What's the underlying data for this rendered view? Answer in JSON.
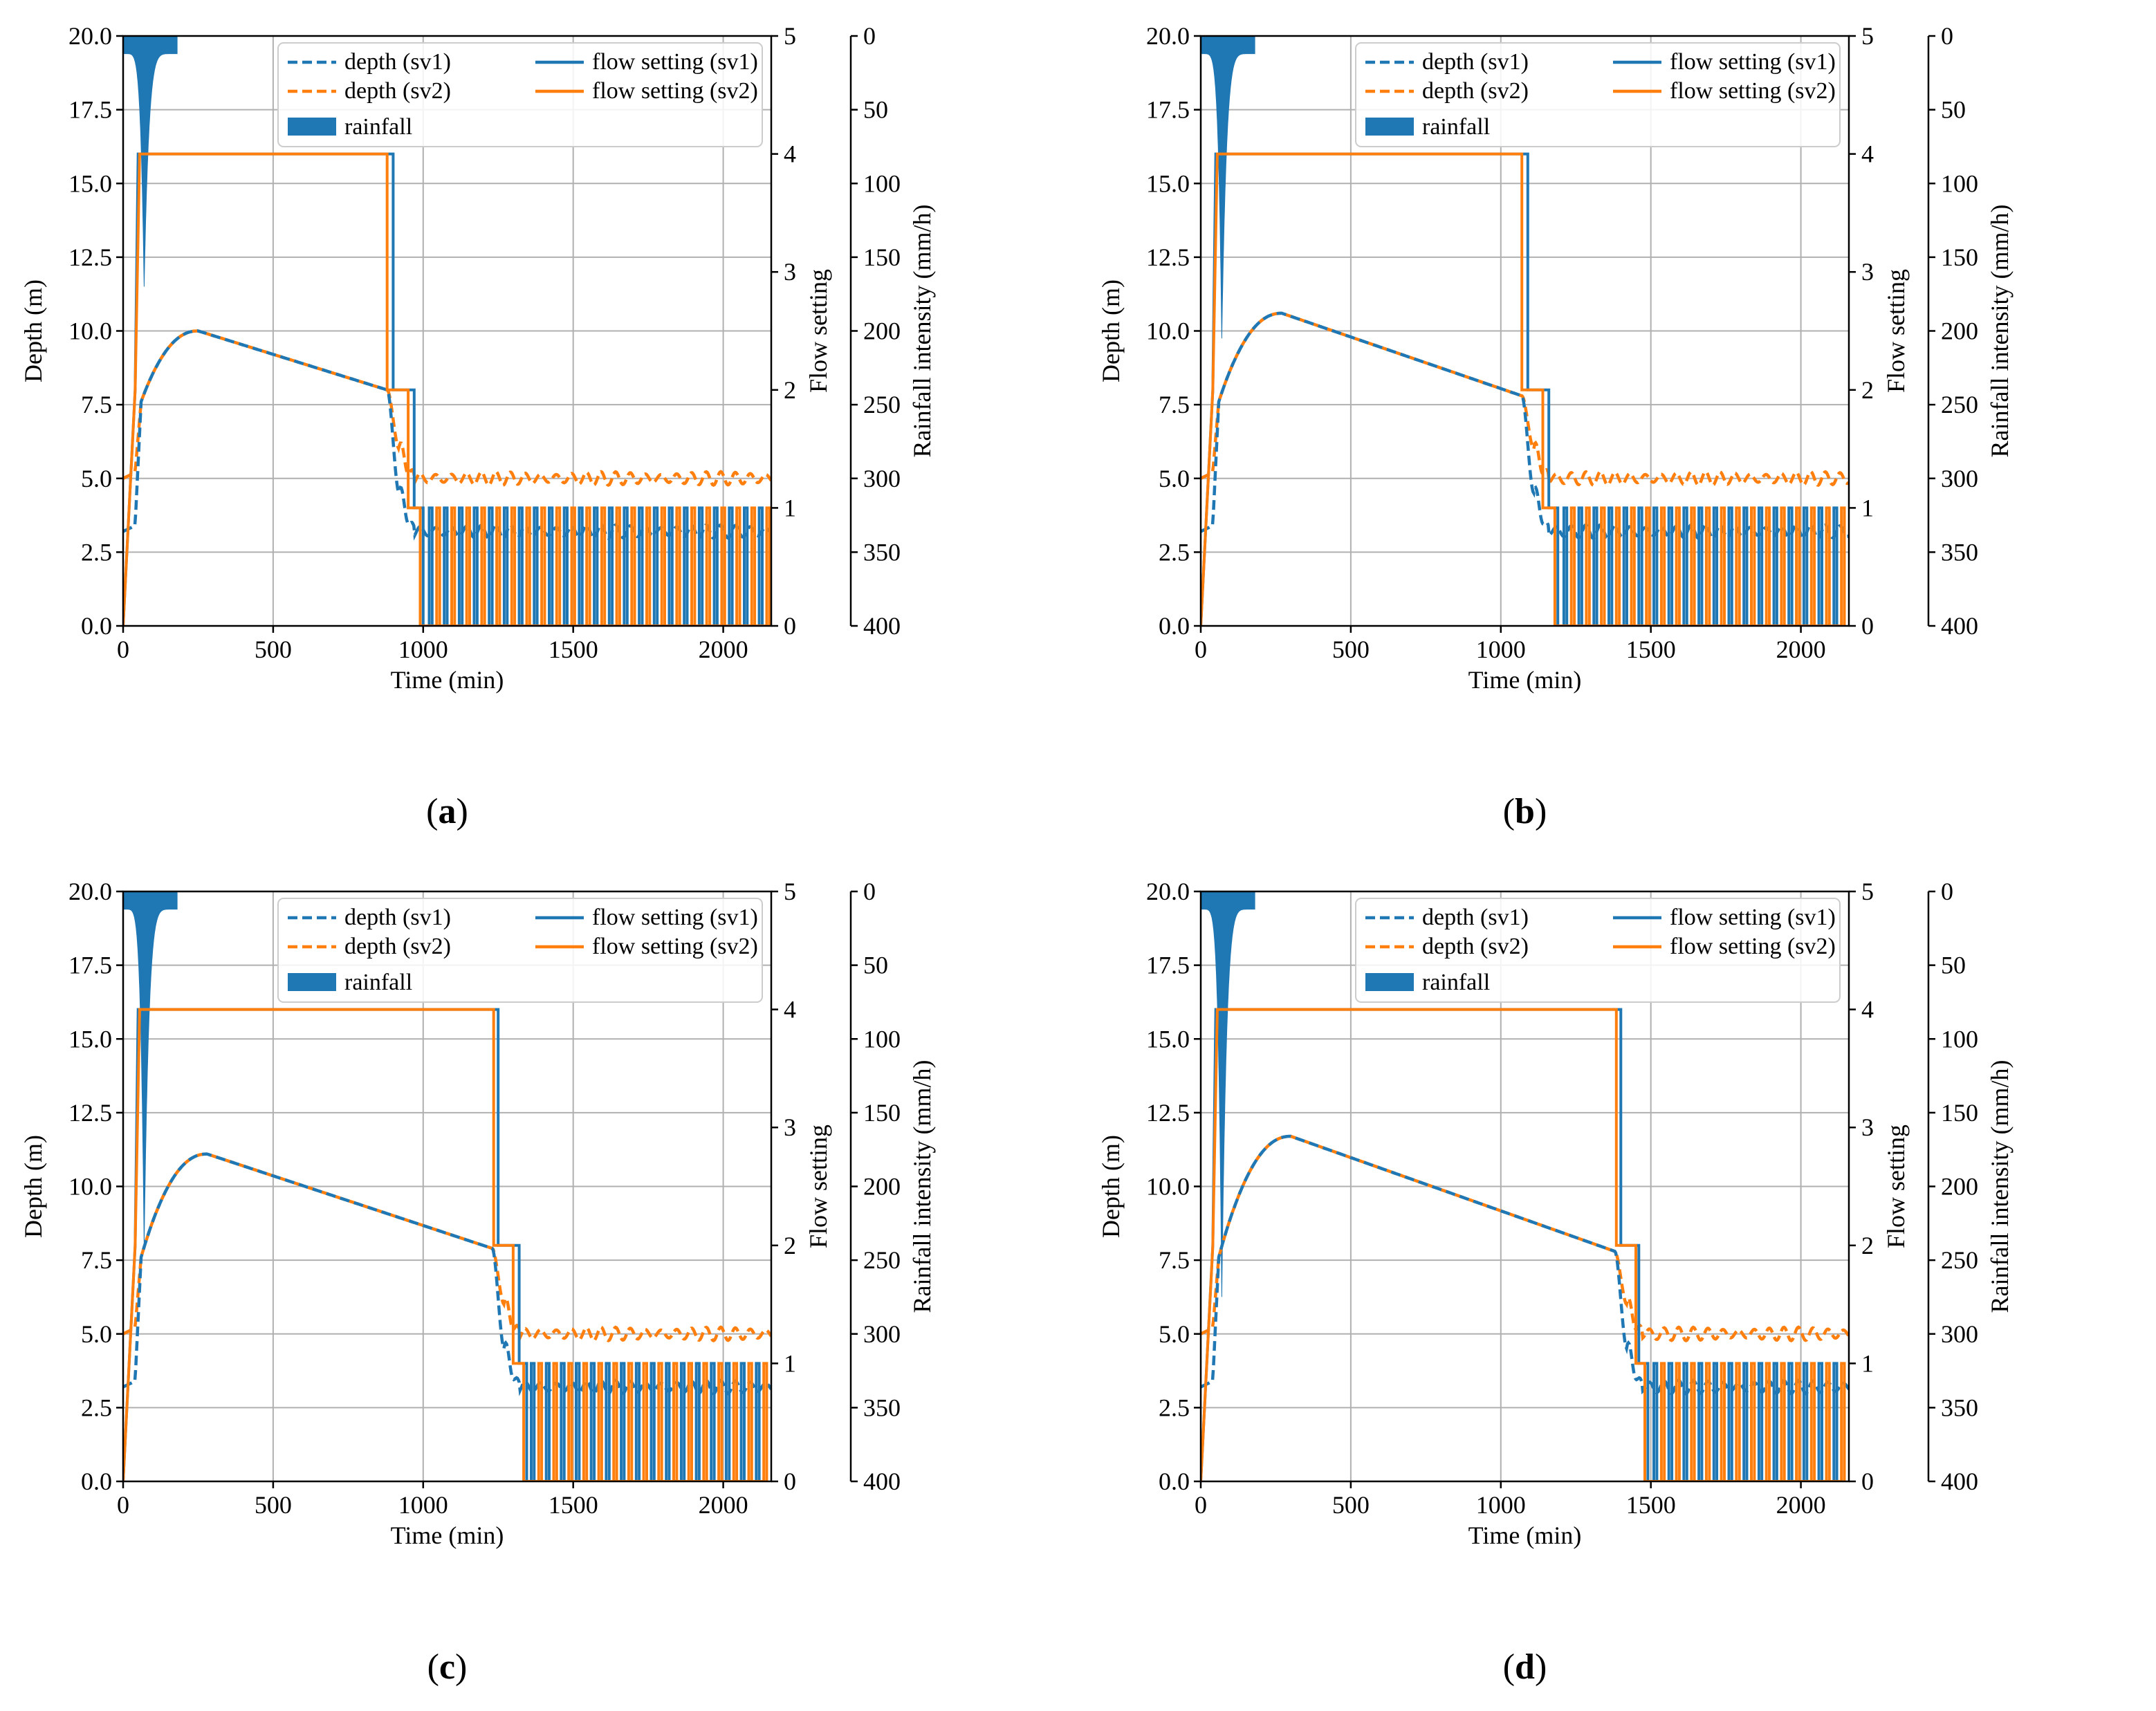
{
  "colors": {
    "sv1": "#1f77b4",
    "sv2": "#ff7f0e",
    "rain": "#1f77b4",
    "grid": "#b0b0b0"
  },
  "chart_data": [
    {
      "panel": "(a)",
      "caption_letter": "a",
      "type": "line",
      "title": "",
      "xlabel": "Time (min)",
      "ylabel": "Depth (m)",
      "y2label": "Flow setting",
      "y3label": "Rainfall intensity (mm/h)",
      "xlim": [
        0,
        2160
      ],
      "ylim": [
        0,
        20
      ],
      "y2lim": [
        0,
        5
      ],
      "y3lim": [
        400,
        0
      ],
      "xticks": [
        "0",
        "500",
        "1000",
        "1500",
        "2000"
      ],
      "yticks": [
        "0.0",
        "2.5",
        "5.0",
        "7.5",
        "10.0",
        "12.5",
        "15.0",
        "17.5",
        "20.0"
      ],
      "y2ticks": [
        "0",
        "1",
        "2",
        "3",
        "4",
        "5"
      ],
      "y3ticks": [
        "0",
        "50",
        "100",
        "150",
        "200",
        "250",
        "300",
        "350",
        "400"
      ],
      "legend": [
        "depth (sv1)",
        "flow setting (sv1)",
        "depth (sv2)",
        "flow setting (sv2)",
        "rainfall"
      ],
      "legend_loc": "upper right",
      "rain_peak_time": 70,
      "rain_peak_mmh": 170,
      "rain_end": 180,
      "depth_peak_time": 250,
      "depth_peak": 10.0,
      "depth_end_time": 880,
      "depth_end": 8.0,
      "drop_time": 900,
      "control_start": 1000,
      "depth_sv1_settled": 3.2,
      "depth_sv2_settled": 5.0,
      "flow_sv1": [
        [
          0,
          0
        ],
        [
          20,
          1
        ],
        [
          40,
          2
        ],
        [
          50,
          4
        ],
        [
          900,
          4
        ],
        [
          900,
          2
        ],
        [
          970,
          2
        ],
        [
          970,
          1
        ],
        [
          1000,
          1
        ],
        [
          1000,
          0
        ]
      ],
      "flow_sv2": [
        [
          0,
          0
        ],
        [
          20,
          1
        ],
        [
          40,
          2
        ],
        [
          55,
          4
        ],
        [
          880,
          4
        ],
        [
          880,
          2
        ],
        [
          950,
          2
        ],
        [
          950,
          1
        ],
        [
          990,
          1
        ],
        [
          990,
          0
        ]
      ]
    },
    {
      "panel": "(b)",
      "caption_letter": "b",
      "type": "line",
      "title": "",
      "xlabel": "Time (min)",
      "ylabel": "Depth (m)",
      "y2label": "Flow setting",
      "y3label": "Rainfall intensity (mm/h)",
      "xlim": [
        0,
        2160
      ],
      "ylim": [
        0,
        20
      ],
      "y2lim": [
        0,
        5
      ],
      "y3lim": [
        400,
        0
      ],
      "xticks": [
        "0",
        "500",
        "1000",
        "1500",
        "2000"
      ],
      "yticks": [
        "0.0",
        "2.5",
        "5.0",
        "7.5",
        "10.0",
        "12.5",
        "15.0",
        "17.5",
        "20.0"
      ],
      "y2ticks": [
        "0",
        "1",
        "2",
        "3",
        "4",
        "5"
      ],
      "y3ticks": [
        "0",
        "50",
        "100",
        "150",
        "200",
        "250",
        "300",
        "350",
        "400"
      ],
      "legend": [
        "depth (sv1)",
        "flow setting (sv1)",
        "depth (sv2)",
        "flow setting (sv2)",
        "rainfall"
      ],
      "legend_loc": "upper right",
      "rain_peak_time": 70,
      "rain_peak_mmh": 205,
      "rain_end": 180,
      "depth_peak_time": 270,
      "depth_peak": 10.6,
      "depth_end_time": 1070,
      "depth_end": 7.8,
      "drop_time": 1090,
      "control_start": 1190,
      "depth_sv1_settled": 3.2,
      "depth_sv2_settled": 5.0,
      "flow_sv1": [
        [
          0,
          0
        ],
        [
          20,
          1
        ],
        [
          40,
          2
        ],
        [
          50,
          4
        ],
        [
          1090,
          4
        ],
        [
          1090,
          2
        ],
        [
          1160,
          2
        ],
        [
          1160,
          1
        ],
        [
          1190,
          1
        ],
        [
          1190,
          0
        ]
      ],
      "flow_sv2": [
        [
          0,
          0
        ],
        [
          20,
          1
        ],
        [
          40,
          2
        ],
        [
          55,
          4
        ],
        [
          1070,
          4
        ],
        [
          1070,
          2
        ],
        [
          1140,
          2
        ],
        [
          1140,
          1
        ],
        [
          1180,
          1
        ],
        [
          1180,
          0
        ]
      ]
    },
    {
      "panel": "(c)",
      "caption_letter": "c",
      "type": "line",
      "title": "",
      "xlabel": "Time (min)",
      "ylabel": "Depth (m)",
      "y2label": "Flow setting",
      "y3label": "Rainfall intensity (mm/h)",
      "xlim": [
        0,
        2160
      ],
      "ylim": [
        0,
        20
      ],
      "y2lim": [
        0,
        5
      ],
      "y3lim": [
        400,
        0
      ],
      "xticks": [
        "0",
        "500",
        "1000",
        "1500",
        "2000"
      ],
      "yticks": [
        "0.0",
        "2.5",
        "5.0",
        "7.5",
        "10.0",
        "12.5",
        "15.0",
        "17.5",
        "20.0"
      ],
      "y2ticks": [
        "0",
        "1",
        "2",
        "3",
        "4",
        "5"
      ],
      "y3ticks": [
        "0",
        "50",
        "100",
        "150",
        "200",
        "250",
        "300",
        "350",
        "400"
      ],
      "legend": [
        "depth (sv1)",
        "flow setting (sv1)",
        "depth (sv2)",
        "flow setting (sv2)",
        "rainfall"
      ],
      "legend_loc": "upper right",
      "rain_peak_time": 70,
      "rain_peak_mmh": 240,
      "rain_end": 180,
      "depth_peak_time": 280,
      "depth_peak": 11.1,
      "depth_end_time": 1230,
      "depth_end": 7.9,
      "drop_time": 1250,
      "control_start": 1340,
      "depth_sv1_settled": 3.2,
      "depth_sv2_settled": 5.0,
      "flow_sv1": [
        [
          0,
          0
        ],
        [
          20,
          1
        ],
        [
          40,
          2
        ],
        [
          50,
          4
        ],
        [
          1250,
          4
        ],
        [
          1250,
          2
        ],
        [
          1320,
          2
        ],
        [
          1320,
          1
        ],
        [
          1345,
          1
        ],
        [
          1345,
          0
        ]
      ],
      "flow_sv2": [
        [
          0,
          0
        ],
        [
          20,
          1
        ],
        [
          40,
          2
        ],
        [
          55,
          4
        ],
        [
          1235,
          4
        ],
        [
          1235,
          2
        ],
        [
          1300,
          2
        ],
        [
          1300,
          1
        ],
        [
          1335,
          1
        ],
        [
          1335,
          0
        ]
      ]
    },
    {
      "panel": "(d)",
      "caption_letter": "d",
      "type": "line",
      "title": "",
      "xlabel": "Time (min)",
      "ylabel": "Depth (m)",
      "y2label": "Flow setting",
      "y3label": "Rainfall intensity (mm/h)",
      "xlim": [
        0,
        2160
      ],
      "ylim": [
        0,
        20
      ],
      "y2lim": [
        0,
        5
      ],
      "y3lim": [
        400,
        0
      ],
      "xticks": [
        "0",
        "500",
        "1000",
        "1500",
        "2000"
      ],
      "yticks": [
        "0.0",
        "2.5",
        "5.0",
        "7.5",
        "10.0",
        "12.5",
        "15.0",
        "17.5",
        "20.0"
      ],
      "y2ticks": [
        "0",
        "1",
        "2",
        "3",
        "4",
        "5"
      ],
      "y3ticks": [
        "0",
        "50",
        "100",
        "150",
        "200",
        "250",
        "300",
        "350",
        "400"
      ],
      "legend": [
        "depth (sv1)",
        "flow setting (sv1)",
        "depth (sv2)",
        "flow setting (sv2)",
        "rainfall"
      ],
      "legend_loc": "upper right",
      "rain_peak_time": 70,
      "rain_peak_mmh": 275,
      "rain_end": 180,
      "depth_peak_time": 300,
      "depth_peak": 11.7,
      "depth_end_time": 1380,
      "depth_end": 7.8,
      "drop_time": 1400,
      "control_start": 1490,
      "depth_sv1_settled": 3.2,
      "depth_sv2_settled": 5.0,
      "flow_sv1": [
        [
          0,
          0
        ],
        [
          20,
          1
        ],
        [
          40,
          2
        ],
        [
          50,
          4
        ],
        [
          1400,
          4
        ],
        [
          1400,
          2
        ],
        [
          1460,
          2
        ],
        [
          1460,
          1
        ],
        [
          1490,
          1
        ],
        [
          1490,
          0
        ]
      ],
      "flow_sv2": [
        [
          0,
          0
        ],
        [
          20,
          1
        ],
        [
          40,
          2
        ],
        [
          55,
          4
        ],
        [
          1385,
          4
        ],
        [
          1385,
          2
        ],
        [
          1450,
          2
        ],
        [
          1450,
          1
        ],
        [
          1480,
          1
        ],
        [
          1480,
          0
        ]
      ]
    }
  ]
}
